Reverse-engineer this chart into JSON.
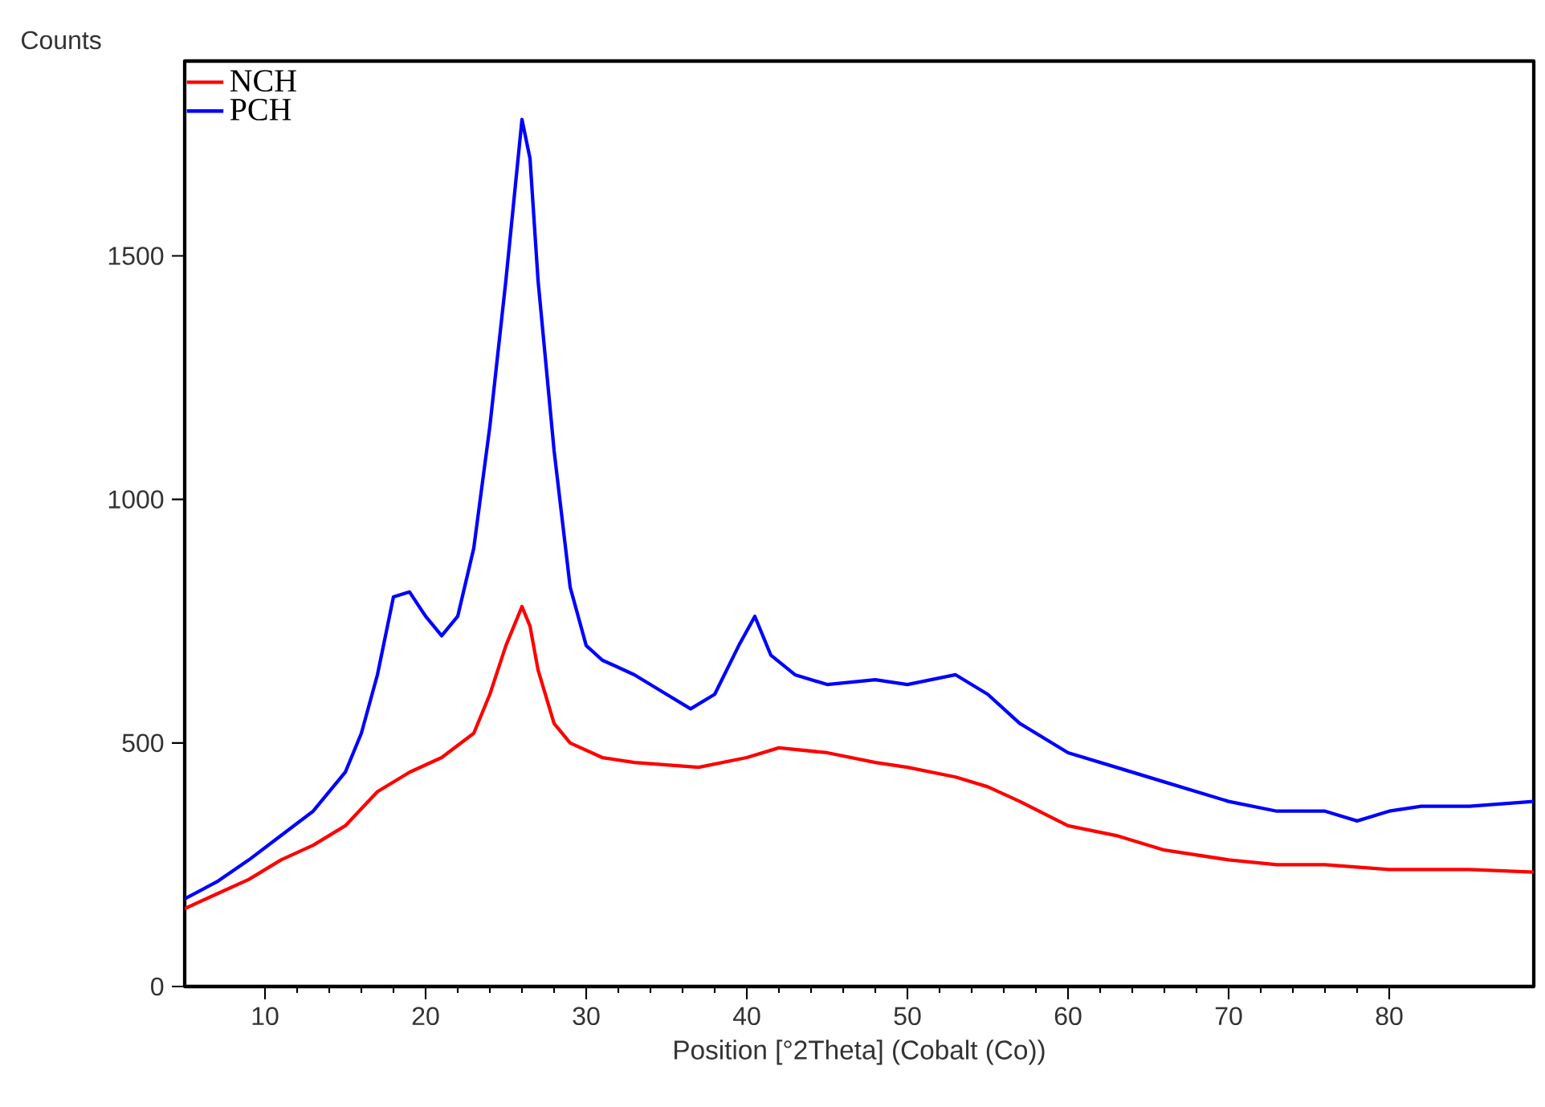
{
  "chart_data": {
    "type": "line",
    "xlabel": "Position [°2Theta] (Cobalt (Co))",
    "ylabel": "Counts",
    "xlim": [
      5,
      89
    ],
    "ylim": [
      0,
      1900
    ],
    "xticks": [
      10,
      20,
      30,
      40,
      50,
      60,
      70,
      80
    ],
    "yticks": [
      0,
      500,
      1000,
      1500
    ],
    "legend": "top left",
    "grid": false,
    "marker": "none",
    "line_style": "solid",
    "series": [
      {
        "name": "NCH",
        "color": "#ff0000",
        "x": [
          5,
          7,
          9,
          11,
          13,
          15,
          17,
          19,
          21,
          23,
          24,
          25,
          26,
          26.5,
          27,
          28,
          29,
          31,
          33,
          35,
          37,
          40,
          42,
          45,
          48,
          50,
          53,
          55,
          57,
          60,
          63,
          66,
          70,
          73,
          76,
          80,
          82,
          85,
          89
        ],
        "values": [
          160,
          190,
          220,
          260,
          290,
          330,
          400,
          440,
          470,
          520,
          600,
          700,
          780,
          740,
          650,
          540,
          500,
          470,
          460,
          455,
          450,
          470,
          490,
          480,
          460,
          450,
          430,
          410,
          380,
          330,
          310,
          280,
          260,
          250,
          250,
          240,
          240,
          240,
          235
        ]
      },
      {
        "name": "PCH",
        "color": "#0000ff",
        "x": [
          5,
          7,
          9,
          11,
          13,
          15,
          16,
          17,
          18,
          19,
          20,
          21,
          22,
          23,
          24,
          25,
          26,
          26.5,
          27,
          28,
          29,
          30,
          31,
          33,
          35,
          36.5,
          38,
          39.5,
          40.5,
          41.5,
          43,
          45,
          48,
          50,
          53,
          55,
          57,
          60,
          63,
          66,
          70,
          73,
          76,
          78,
          80,
          82,
          85,
          89
        ],
        "values": [
          180,
          215,
          260,
          310,
          360,
          440,
          520,
          640,
          800,
          810,
          760,
          720,
          760,
          900,
          1150,
          1450,
          1780,
          1700,
          1450,
          1100,
          820,
          700,
          670,
          640,
          600,
          570,
          600,
          700,
          760,
          680,
          640,
          620,
          630,
          620,
          640,
          600,
          540,
          480,
          450,
          420,
          380,
          360,
          360,
          340,
          360,
          370,
          370,
          380
        ]
      }
    ]
  }
}
